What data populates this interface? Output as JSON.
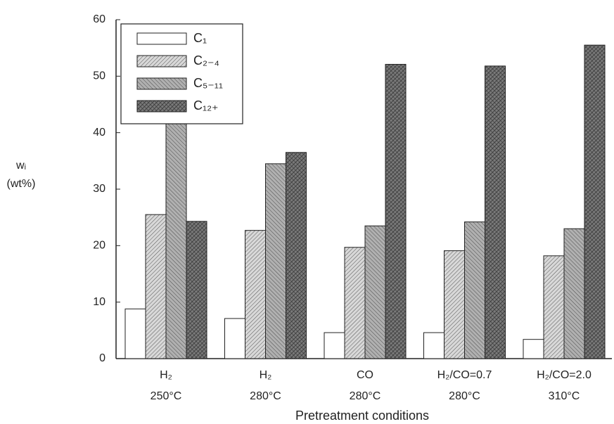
{
  "chart_data": {
    "type": "bar",
    "y_label": [
      "wᵢ",
      "(wt%)"
    ],
    "x_label": "Pretreatment conditions",
    "categories": [
      [
        "H₂",
        "250°C"
      ],
      [
        "H₂",
        "280°C"
      ],
      [
        "CO",
        "280°C"
      ],
      [
        "H₂/CO=0.7",
        "280°C"
      ],
      [
        "H₂/CO=2.0",
        "310°C"
      ]
    ],
    "series": [
      {
        "name": "C₁",
        "color": "#ffffff",
        "values": [
          8.8,
          7.1,
          4.6,
          4.6,
          3.4
        ]
      },
      {
        "name": "C₂₋₄",
        "color": "#d8d8d8",
        "values": [
          25.5,
          22.7,
          19.7,
          19.1,
          18.2
        ]
      },
      {
        "name": "C₅₋₁₁",
        "color": "#b0b0b0",
        "values": [
          41.7,
          34.5,
          23.5,
          24.2,
          23.0
        ]
      },
      {
        "name": "C₁₂₊",
        "color": "#7a7a7a",
        "values": [
          24.3,
          36.5,
          52.1,
          51.8,
          55.5
        ]
      }
    ],
    "ylim": [
      0,
      60
    ],
    "yticks": [
      0,
      10,
      20,
      30,
      40,
      50,
      60
    ],
    "legend": "upper-left"
  }
}
